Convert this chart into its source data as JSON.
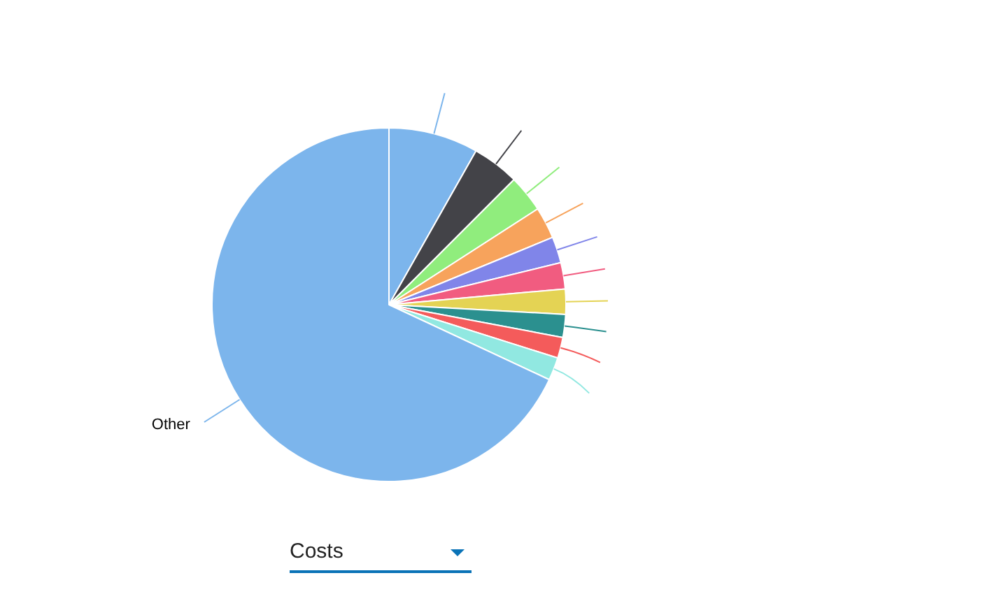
{
  "chart_data": {
    "type": "pie",
    "categories": [
      null,
      null,
      null,
      null,
      null,
      null,
      null,
      null,
      null,
      null,
      "Other"
    ],
    "values": [
      8.2,
      4.3,
      3.4,
      2.9,
      2.4,
      2.4,
      2.3,
      2.1,
      1.9,
      2.1,
      68.1
    ],
    "colors": [
      "#7cb5ec",
      "#434348",
      "#90ed7d",
      "#f7a35c",
      "#8085e9",
      "#f15c80",
      "#e4d354",
      "#2b908f",
      "#f45b5b",
      "#91e8e1",
      "#7cb5ec"
    ],
    "annotations": [
      "Costs"
    ]
  }
}
